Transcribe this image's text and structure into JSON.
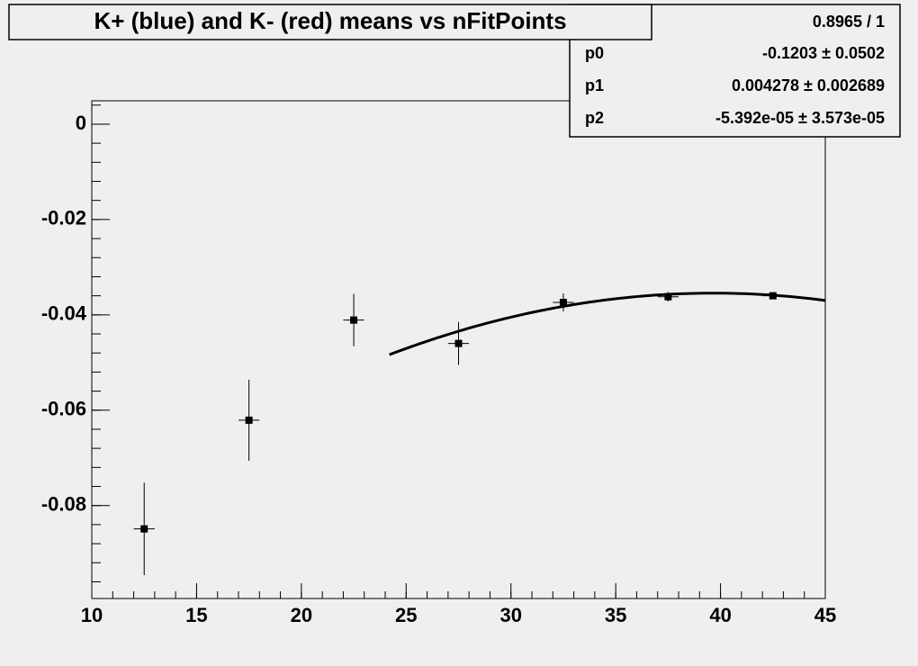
{
  "chart_data": {
    "type": "errorbar",
    "title": "K+ (blue) and K- (red) means vs nFitPoints",
    "series": [
      {
        "color": "#000000",
        "x": [
          12.5,
          17.5,
          22.5,
          27.5,
          32.5,
          37.5,
          42.5
        ],
        "values": [
          -0.0849,
          -0.0621,
          -0.0411,
          -0.046,
          -0.0374,
          -0.0362,
          -0.036
        ],
        "errors": [
          0.0097,
          0.0085,
          0.0055,
          0.0045,
          0.0019,
          0.001,
          0.0006
        ],
        "xerrors": [
          0.5,
          0.5,
          0.5,
          0.5,
          0.5,
          0.5,
          0.5
        ]
      }
    ],
    "fit": {
      "chi2_ndf": "0.8965 / 1",
      "range": [
        24.2,
        45
      ],
      "params": [
        {
          "name": "p0",
          "value": -0.1203,
          "error": 0.0502,
          "label": "-0.1203 ± 0.0502"
        },
        {
          "name": "p1",
          "value": 0.004278,
          "error": 0.002689,
          "label": "0.004278 ± 0.002689"
        },
        {
          "name": "p2",
          "value": -5.392e-05,
          "error": 3.573e-05,
          "label": "-5.392e-05 ± 3.573e-05"
        }
      ]
    },
    "xlim": [
      10,
      45
    ],
    "xticks": [
      10,
      15,
      20,
      25,
      30,
      35,
      40,
      45
    ],
    "ylim": [
      -0.0995,
      0.0049
    ],
    "yticks": [
      0,
      -0.02,
      -0.04,
      -0.06,
      -0.08
    ],
    "grid": false
  }
}
